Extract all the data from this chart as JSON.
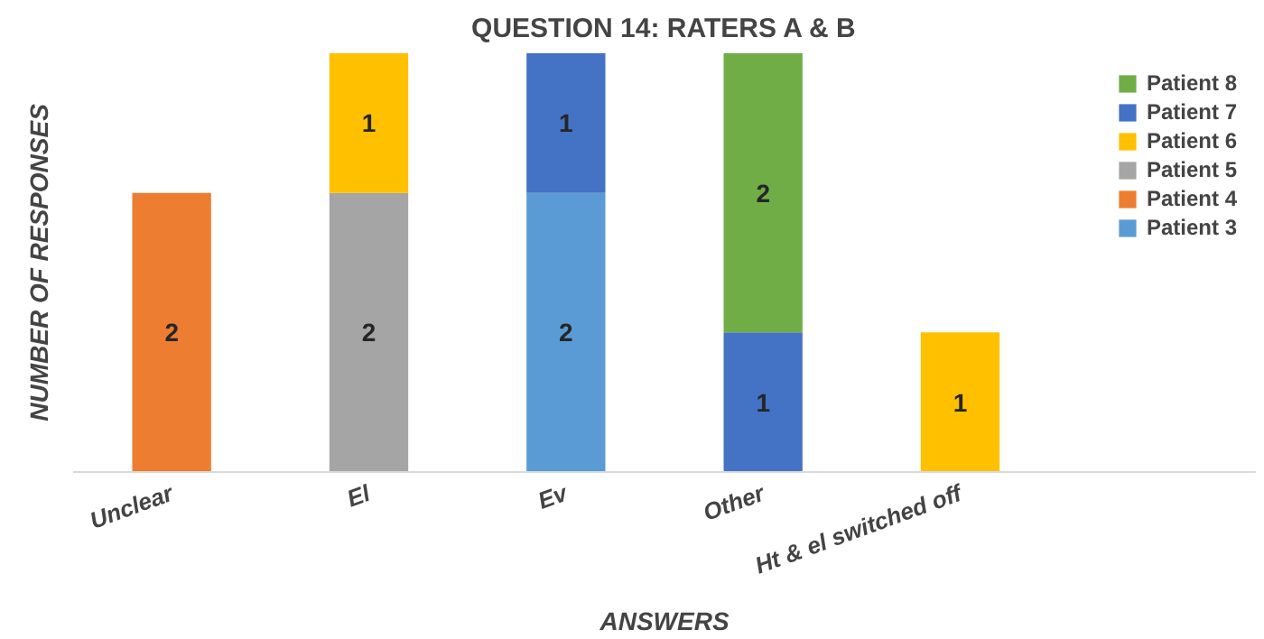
{
  "chart_data": {
    "type": "bar",
    "title": "QUESTION 14: RATERS A & B",
    "xlabel": "ANSWERS",
    "ylabel": "NUMBER OF RESPONSES",
    "categories": [
      "Unclear",
      "El",
      "Ev",
      "Other",
      "Ht & el switched off"
    ],
    "stacked": true,
    "data_labels": true,
    "legend": "top right",
    "tick_labels": "x",
    "grid": false,
    "ylim": [
      0,
      3
    ],
    "series": [
      {
        "name": "Patient 3",
        "color": "#5b9bd5",
        "values": [
          null,
          null,
          2,
          null,
          null
        ]
      },
      {
        "name": "Patient 4",
        "color": "#ed7d31",
        "values": [
          2,
          null,
          null,
          null,
          null
        ]
      },
      {
        "name": "Patient 5",
        "color": "#a5a5a5",
        "values": [
          null,
          2,
          null,
          null,
          null
        ]
      },
      {
        "name": "Patient 6",
        "color": "#ffc000",
        "values": [
          null,
          1,
          null,
          null,
          1
        ]
      },
      {
        "name": "Patient 7",
        "color": "#4472c4",
        "values": [
          null,
          null,
          1,
          1,
          null
        ]
      },
      {
        "name": "Patient 8",
        "color": "#70ad47",
        "values": [
          null,
          null,
          null,
          2,
          null
        ]
      }
    ]
  }
}
